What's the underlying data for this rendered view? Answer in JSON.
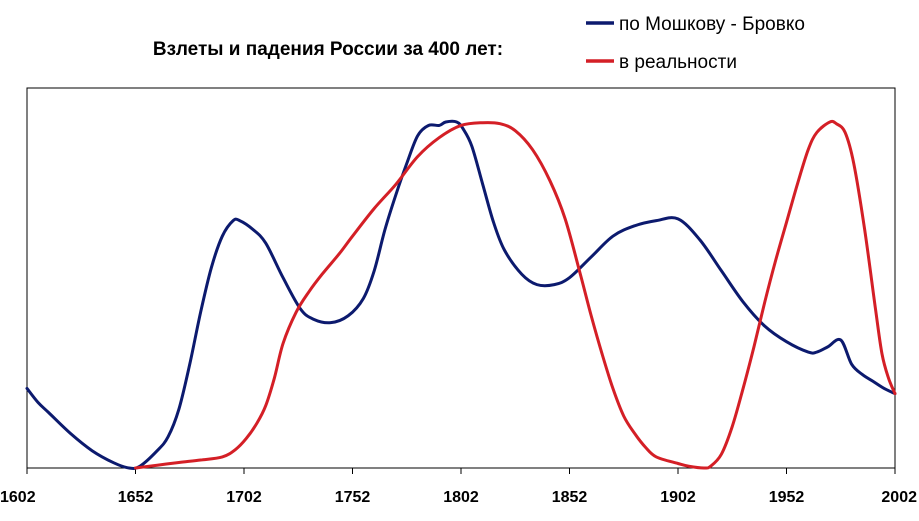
{
  "chart_data": {
    "type": "line",
    "title": "Взлеты и падения России за 400 лет:",
    "xlabel": "",
    "ylabel": "",
    "xlim": [
      1602,
      2002
    ],
    "ylim": [
      0,
      100
    ],
    "x_ticks": [
      1602,
      1652,
      1702,
      1752,
      1802,
      1852,
      1902,
      1952,
      2002
    ],
    "x_tick_labels": [
      "1602",
      "1652",
      "1702",
      "1752",
      "1802",
      "1852",
      "1902",
      "1952",
      "2002"
    ],
    "grid": false,
    "legend_position": "top-right",
    "series": [
      {
        "name": "по Мошкову - Бровко",
        "color": "#0c1a6e",
        "points": [
          [
            1602,
            23
          ],
          [
            1607,
            19
          ],
          [
            1612,
            16
          ],
          [
            1622,
            10
          ],
          [
            1632,
            5
          ],
          [
            1642,
            1.5
          ],
          [
            1649,
            0
          ],
          [
            1654,
            0.5
          ],
          [
            1662,
            5
          ],
          [
            1667,
            9
          ],
          [
            1672,
            17
          ],
          [
            1677,
            30
          ],
          [
            1682,
            45
          ],
          [
            1687,
            58
          ],
          [
            1692,
            67
          ],
          [
            1697,
            71.5
          ],
          [
            1700,
            71.5
          ],
          [
            1706,
            69
          ],
          [
            1712,
            65
          ],
          [
            1720,
            55
          ],
          [
            1728,
            46
          ],
          [
            1734,
            43
          ],
          [
            1742,
            42
          ],
          [
            1750,
            44
          ],
          [
            1757,
            49
          ],
          [
            1762,
            57
          ],
          [
            1767,
            69
          ],
          [
            1772,
            79
          ],
          [
            1777,
            88
          ],
          [
            1782,
            96
          ],
          [
            1787,
            99
          ],
          [
            1792,
            99
          ],
          [
            1795,
            100
          ],
          [
            1800,
            100
          ],
          [
            1803,
            98
          ],
          [
            1807,
            93
          ],
          [
            1812,
            82
          ],
          [
            1817,
            71
          ],
          [
            1822,
            63
          ],
          [
            1830,
            56
          ],
          [
            1837,
            53
          ],
          [
            1845,
            53
          ],
          [
            1852,
            55
          ],
          [
            1862,
            61
          ],
          [
            1872,
            67
          ],
          [
            1882,
            70
          ],
          [
            1892,
            71.5
          ],
          [
            1902,
            72
          ],
          [
            1912,
            66
          ],
          [
            1922,
            57
          ],
          [
            1932,
            48
          ],
          [
            1942,
            41
          ],
          [
            1952,
            36.5
          ],
          [
            1962,
            33.5
          ],
          [
            1966,
            33.5
          ],
          [
            1971,
            35
          ],
          [
            1977,
            37
          ],
          [
            1982,
            30
          ],
          [
            1987,
            27
          ],
          [
            1992,
            25
          ],
          [
            1997,
            23
          ],
          [
            2002,
            21.5
          ]
        ]
      },
      {
        "name": "в реальности",
        "color": "#d41f26",
        "points": [
          [
            1652,
            0
          ],
          [
            1662,
            0.8
          ],
          [
            1672,
            1.6
          ],
          [
            1682,
            2.3
          ],
          [
            1692,
            3.2
          ],
          [
            1698,
            5.3
          ],
          [
            1703,
            8.5
          ],
          [
            1708,
            13
          ],
          [
            1712,
            18
          ],
          [
            1716,
            26
          ],
          [
            1720,
            36
          ],
          [
            1726,
            45
          ],
          [
            1732,
            51
          ],
          [
            1738,
            56
          ],
          [
            1746,
            62
          ],
          [
            1752,
            67
          ],
          [
            1762,
            75
          ],
          [
            1772,
            82
          ],
          [
            1782,
            90
          ],
          [
            1792,
            95.5
          ],
          [
            1802,
            99
          ],
          [
            1812,
            99.8
          ],
          [
            1820,
            99.5
          ],
          [
            1827,
            97.5
          ],
          [
            1835,
            92
          ],
          [
            1843,
            83
          ],
          [
            1850,
            72
          ],
          [
            1857,
            56
          ],
          [
            1862,
            44
          ],
          [
            1867,
            33
          ],
          [
            1872,
            23
          ],
          [
            1877,
            15
          ],
          [
            1882,
            10
          ],
          [
            1887,
            6
          ],
          [
            1892,
            3.2
          ],
          [
            1902,
            1.3
          ],
          [
            1907,
            0.5
          ],
          [
            1914,
            0
          ],
          [
            1917,
            0.5
          ],
          [
            1922,
            4
          ],
          [
            1927,
            12
          ],
          [
            1932,
            23
          ],
          [
            1937,
            35
          ],
          [
            1942,
            48
          ],
          [
            1947,
            60
          ],
          [
            1952,
            71
          ],
          [
            1957,
            82
          ],
          [
            1962,
            92
          ],
          [
            1966,
            97
          ],
          [
            1972,
            100
          ],
          [
            1975,
            99.5
          ],
          [
            1979,
            97
          ],
          [
            1983,
            88
          ],
          [
            1988,
            69
          ],
          [
            1993,
            46
          ],
          [
            1996,
            33
          ],
          [
            1999,
            26
          ],
          [
            2002,
            21.5
          ]
        ]
      }
    ]
  }
}
